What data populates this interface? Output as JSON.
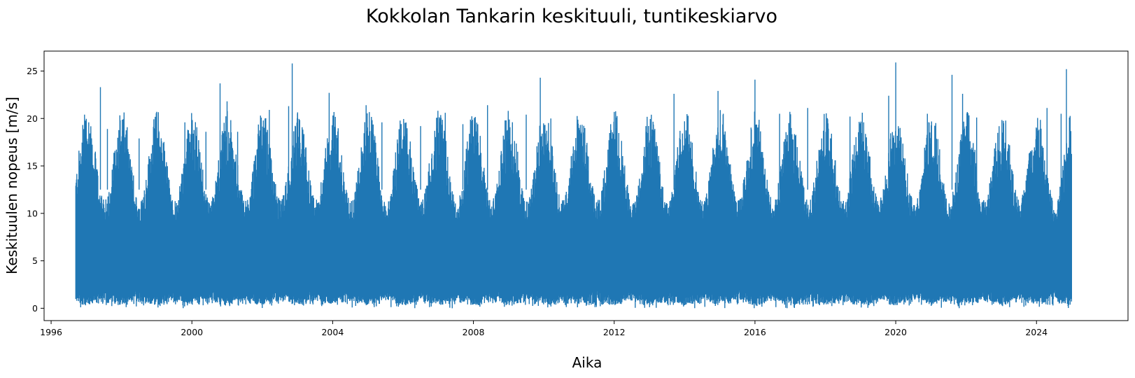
{
  "chart_data": {
    "type": "line",
    "title": "Kokkolan Tankarin keskituuli, tuntikeskiarvo",
    "xlabel": "Aika",
    "ylabel": "Keskituulen nopeus [m/s]",
    "xlim": [
      1995.8,
      2026.6
    ],
    "ylim": [
      -1.3,
      27.1
    ],
    "x_ticks": [
      1996,
      2000,
      2004,
      2008,
      2012,
      2016,
      2020,
      2024
    ],
    "x_tick_labels": [
      "1996",
      "2000",
      "2004",
      "2008",
      "2012",
      "2016",
      "2020",
      "2024"
    ],
    "y_ticks": [
      0,
      5,
      10,
      15,
      20,
      25
    ],
    "y_tick_labels": [
      "0",
      "5",
      "10",
      "15",
      "20",
      "25"
    ],
    "series": [
      {
        "name": "Keskituuli",
        "color": "#1f77b4",
        "x_start": 1996.7,
        "x_end": 2025.0,
        "typical_max": 14.5,
        "typical_min": 1.0,
        "peaks": [
          {
            "x": 1996.85,
            "y": 15.2
          },
          {
            "x": 1996.95,
            "y": 20.4
          },
          {
            "x": 1997.1,
            "y": 18.4
          },
          {
            "x": 1997.4,
            "y": 23.3
          },
          {
            "x": 1997.6,
            "y": 18.9
          },
          {
            "x": 1998.5,
            "y": 17.9
          },
          {
            "x": 1999.0,
            "y": 20.7
          },
          {
            "x": 1999.8,
            "y": 19.6
          },
          {
            "x": 2000.4,
            "y": 18.6
          },
          {
            "x": 2000.8,
            "y": 23.7
          },
          {
            "x": 2001.0,
            "y": 21.8
          },
          {
            "x": 2001.3,
            "y": 18.6
          },
          {
            "x": 2002.2,
            "y": 20.9
          },
          {
            "x": 2002.75,
            "y": 21.3
          },
          {
            "x": 2002.85,
            "y": 25.8
          },
          {
            "x": 2003.0,
            "y": 20.5
          },
          {
            "x": 2003.9,
            "y": 22.7
          },
          {
            "x": 2004.95,
            "y": 21.4
          },
          {
            "x": 2005.4,
            "y": 19.6
          },
          {
            "x": 2006.5,
            "y": 19.2
          },
          {
            "x": 2007.2,
            "y": 20.6
          },
          {
            "x": 2007.7,
            "y": 19.4
          },
          {
            "x": 2008.4,
            "y": 21.4
          },
          {
            "x": 2008.9,
            "y": 19.8
          },
          {
            "x": 2009.5,
            "y": 20.4
          },
          {
            "x": 2009.9,
            "y": 24.3
          },
          {
            "x": 2010.2,
            "y": 20.0
          },
          {
            "x": 2011.0,
            "y": 19.0
          },
          {
            "x": 2011.9,
            "y": 19.4
          },
          {
            "x": 2012.9,
            "y": 19.2
          },
          {
            "x": 2013.7,
            "y": 22.6
          },
          {
            "x": 2014.95,
            "y": 22.9
          },
          {
            "x": 2015.1,
            "y": 20.5
          },
          {
            "x": 2016.0,
            "y": 24.1
          },
          {
            "x": 2016.7,
            "y": 20.5
          },
          {
            "x": 2017.5,
            "y": 21.1
          },
          {
            "x": 2018.7,
            "y": 20.2
          },
          {
            "x": 2019.8,
            "y": 22.4
          },
          {
            "x": 2020.0,
            "y": 25.9
          },
          {
            "x": 2020.9,
            "y": 20.5
          },
          {
            "x": 2021.6,
            "y": 24.6
          },
          {
            "x": 2021.9,
            "y": 22.6
          },
          {
            "x": 2022.3,
            "y": 20.1
          },
          {
            "x": 2024.3,
            "y": 21.1
          },
          {
            "x": 2024.7,
            "y": 20.5
          },
          {
            "x": 2024.85,
            "y": 25.2
          },
          {
            "x": 2024.95,
            "y": 19.2
          }
        ]
      }
    ]
  }
}
